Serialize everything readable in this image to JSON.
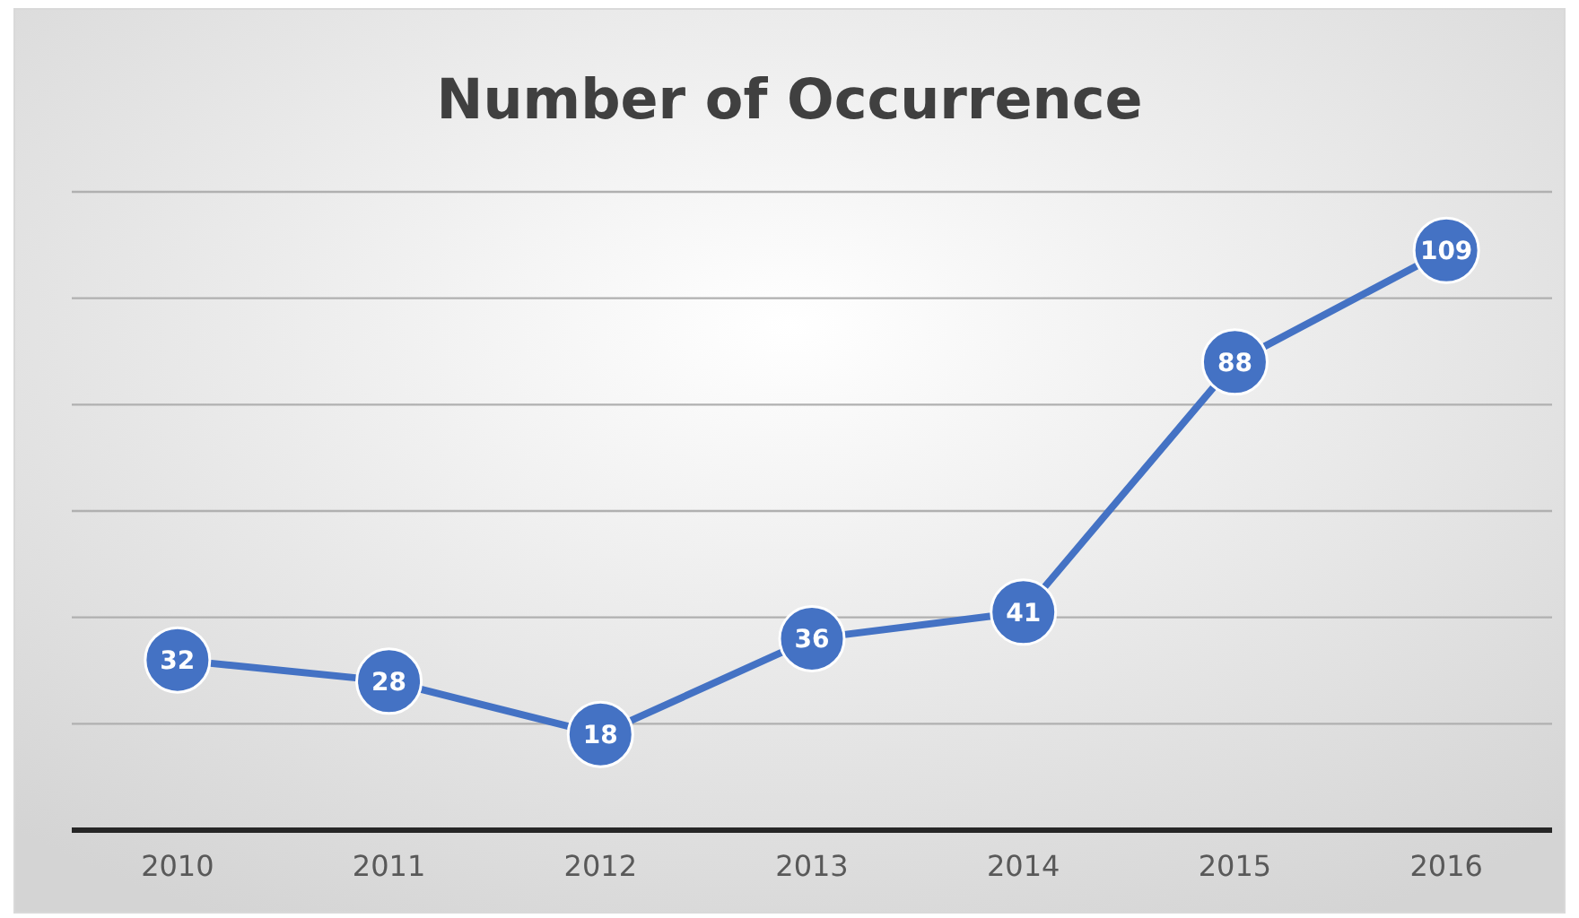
{
  "chart_data": {
    "type": "line",
    "title": "Number of Occurrence",
    "categories": [
      "2010",
      "2011",
      "2012",
      "2013",
      "2014",
      "2015",
      "2016"
    ],
    "series": [
      {
        "color": "#4472c4",
        "values": [
          32,
          28,
          18,
          36,
          41,
          88,
          109
        ]
      }
    ],
    "ylim": [
      0,
      120
    ],
    "yticks": [
      {
        "value": 0,
        "label": null
      },
      {
        "value": 20,
        "label": null
      },
      {
        "value": 40,
        "label": null
      },
      {
        "value": 60,
        "label": null
      },
      {
        "value": 80,
        "label": null
      },
      {
        "value": 100,
        "label": null
      },
      {
        "value": 120,
        "label": null
      }
    ],
    "grid": "y",
    "tick_labels": "x",
    "data_labels": true,
    "marker": "circle",
    "line_style": "solid"
  }
}
